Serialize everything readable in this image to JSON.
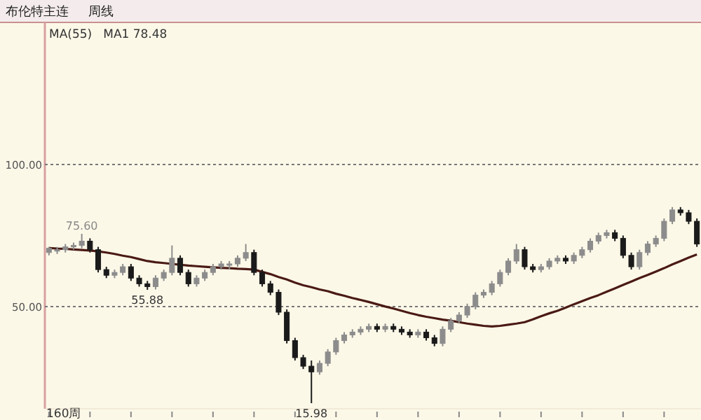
{
  "chart_data": {
    "type": "candlestick",
    "title": "布伦特主连",
    "annotations": [
      "周线",
      "MA(55)",
      "MA1 78.48",
      "160周",
      {
        "text": "75.60",
        "y": 75.6
      },
      {
        "text": "55.88",
        "y": 55.88
      },
      {
        "text": "15.98",
        "y": 15.98
      }
    ],
    "categories": [
      null,
      null,
      null,
      null,
      null,
      null,
      null,
      null,
      null,
      null,
      null,
      null,
      null,
      null,
      null,
      null,
      null,
      null,
      null,
      null,
      null,
      null,
      null,
      null,
      null,
      null,
      null,
      null,
      null,
      null,
      null,
      null,
      null,
      null,
      null,
      null,
      null,
      null,
      null,
      null,
      null,
      null,
      null,
      null,
      null,
      null,
      null,
      null,
      null,
      null,
      null,
      null,
      null,
      null,
      null,
      null,
      null,
      null,
      null,
      null,
      null,
      null,
      null,
      null,
      null,
      null,
      null,
      null,
      null,
      null,
      null,
      null,
      null,
      null,
      null,
      null,
      null,
      null,
      null,
      null
    ],
    "ylim": [
      14,
      150
    ],
    "yticks": [
      {
        "value": 50,
        "label": "50.00"
      },
      {
        "value": 100,
        "label": "100.00"
      }
    ],
    "grid": "y",
    "series": [
      {
        "type": "candlestick",
        "colors": [
          "#8c8c8c",
          "#8c8c8c",
          "#8c8c8c",
          "#8c8c8c",
          "#8c8c8c",
          "#1a1a1a",
          "#1a1a1a",
          "#1a1a1a",
          "#8c8c8c",
          "#8c8c8c",
          "#1a1a1a",
          "#1a1a1a",
          "#1a1a1a",
          "#8c8c8c",
          "#8c8c8c",
          "#8c8c8c",
          "#1a1a1a",
          "#1a1a1a",
          "#8c8c8c",
          "#8c8c8c",
          "#8c8c8c",
          "#8c8c8c",
          "#8c8c8c",
          "#8c8c8c",
          "#8c8c8c",
          "#1a1a1a",
          "#1a1a1a",
          "#1a1a1a",
          "#1a1a1a",
          "#1a1a1a",
          "#1a1a1a",
          "#1a1a1a",
          "#1a1a1a",
          "#8c8c8c",
          "#8c8c8c",
          "#8c8c8c",
          "#8c8c8c",
          "#8c8c8c",
          "#8c8c8c",
          "#8c8c8c",
          "#1a1a1a",
          "#8c8c8c",
          "#1a1a1a",
          "#1a1a1a",
          "#1a1a1a",
          "#8c8c8c",
          "#1a1a1a",
          "#1a1a1a",
          "#8c8c8c",
          "#8c8c8c",
          "#8c8c8c",
          "#8c8c8c",
          "#8c8c8c",
          "#8c8c8c",
          "#8c8c8c",
          "#8c8c8c",
          "#8c8c8c",
          "#8c8c8c",
          "#1a1a1a",
          "#1a1a1a",
          "#8c8c8c",
          "#8c8c8c",
          "#8c8c8c",
          "#1a1a1a",
          "#8c8c8c",
          "#8c8c8c",
          "#8c8c8c",
          "#8c8c8c",
          "#8c8c8c",
          "#1a1a1a",
          "#1a1a1a",
          "#1a1a1a",
          "#8c8c8c",
          "#8c8c8c",
          "#8c8c8c",
          "#8c8c8c",
          "#8c8c8c",
          "#1a1a1a",
          "#1a1a1a",
          "#1a1a1a"
        ],
        "ohlc": [
          [
            69,
            71,
            68,
            70.5
          ],
          [
            69.5,
            71,
            68.5,
            70
          ],
          [
            70,
            72,
            69,
            71
          ],
          [
            71,
            72.5,
            70,
            71.5
          ],
          [
            71.5,
            75.6,
            70.5,
            73
          ],
          [
            73,
            74,
            69,
            70
          ],
          [
            70,
            71,
            62,
            63
          ],
          [
            63,
            64,
            60,
            61
          ],
          [
            61,
            63,
            60,
            62
          ],
          [
            62,
            65,
            61,
            64
          ],
          [
            64,
            65,
            59,
            60
          ],
          [
            60,
            61,
            57,
            58
          ],
          [
            58,
            59,
            55.88,
            57
          ],
          [
            57,
            61,
            56,
            60
          ],
          [
            60,
            63,
            59,
            62
          ],
          [
            62,
            71.5,
            61,
            67
          ],
          [
            67,
            68,
            61,
            62
          ],
          [
            62,
            63,
            57,
            58
          ],
          [
            58,
            61,
            57,
            60
          ],
          [
            60,
            63,
            59,
            62
          ],
          [
            62,
            65,
            61,
            64
          ],
          [
            64,
            66,
            63,
            65
          ],
          [
            65,
            66,
            63,
            65
          ],
          [
            65,
            68,
            64,
            67
          ],
          [
            67,
            72,
            66,
            69
          ],
          [
            69,
            70,
            61,
            62
          ],
          [
            62,
            63,
            57,
            58
          ],
          [
            58,
            59,
            54,
            55
          ],
          [
            55,
            56,
            47,
            48
          ],
          [
            48,
            49,
            37,
            38
          ],
          [
            38,
            39,
            31,
            32
          ],
          [
            32,
            33,
            28,
            29
          ],
          [
            29,
            31,
            15.98,
            27
          ],
          [
            27,
            31,
            26,
            30
          ],
          [
            30,
            35,
            29,
            34
          ],
          [
            34,
            39,
            33,
            38
          ],
          [
            38,
            41,
            37,
            40
          ],
          [
            40,
            42,
            39,
            41
          ],
          [
            41,
            43,
            40,
            42
          ],
          [
            42,
            44,
            41,
            43
          ],
          [
            43,
            44,
            41,
            42
          ],
          [
            42,
            44,
            41,
            43
          ],
          [
            43,
            44,
            41,
            42
          ],
          [
            42,
            43,
            40,
            41
          ],
          [
            41,
            42,
            39,
            40
          ],
          [
            40,
            42,
            39,
            41
          ],
          [
            41,
            42,
            38,
            39
          ],
          [
            39,
            40,
            36,
            37
          ],
          [
            37,
            43,
            36,
            42
          ],
          [
            42,
            46,
            41,
            45
          ],
          [
            45,
            48,
            44,
            47
          ],
          [
            47,
            51,
            46,
            50
          ],
          [
            50,
            55,
            49,
            54
          ],
          [
            54,
            56,
            53,
            55
          ],
          [
            55,
            59,
            54,
            58
          ],
          [
            58,
            63,
            57,
            62
          ],
          [
            62,
            67,
            61,
            66
          ],
          [
            66,
            72,
            65,
            70
          ],
          [
            70,
            71,
            63,
            64
          ],
          [
            64,
            65,
            62,
            63
          ],
          [
            63,
            65,
            62,
            64
          ],
          [
            64,
            67,
            63,
            66
          ],
          [
            66,
            68,
            65,
            67
          ],
          [
            67,
            68,
            65,
            66
          ],
          [
            66,
            69,
            65,
            68
          ],
          [
            68,
            71,
            67,
            70
          ],
          [
            70,
            74,
            69,
            73
          ],
          [
            73,
            76,
            72,
            75
          ],
          [
            75,
            77,
            74,
            76
          ],
          [
            76,
            77,
            73,
            74
          ],
          [
            74,
            75,
            67,
            68
          ],
          [
            68,
            69,
            63,
            64
          ],
          [
            64,
            70,
            63,
            69
          ],
          [
            69,
            73,
            68,
            72
          ],
          [
            72,
            75,
            71,
            74
          ],
          [
            74,
            81,
            73,
            80
          ],
          [
            80,
            85,
            79,
            84
          ],
          [
            84,
            85,
            82,
            83
          ],
          [
            83,
            84,
            79,
            80
          ],
          [
            80,
            81,
            71,
            72
          ]
        ]
      },
      {
        "type": "line",
        "color": "#4a1a14",
        "values": [
          70.6,
          70.4,
          70.3,
          70.1,
          69.9,
          69.7,
          69.4,
          69,
          68.5,
          67.9,
          67.4,
          66.7,
          66,
          65.6,
          65.3,
          65,
          64.7,
          64.4,
          64.2,
          64,
          63.8,
          63.6,
          63.5,
          63.3,
          63.2,
          63,
          62.2,
          61.4,
          60.4,
          59.5,
          58.4,
          57.5,
          56.8,
          56,
          55.4,
          54.5,
          53.8,
          53,
          52.3,
          51.6,
          50.8,
          50,
          49.3,
          48.5,
          47.7,
          47,
          46.4,
          45.9,
          45.4,
          45,
          44.5,
          44,
          43.6,
          43.2,
          43,
          43.2,
          43.6,
          44,
          44.5,
          45.5,
          46.6,
          47.6,
          48.5,
          49.6,
          50.8,
          51.9,
          53,
          54,
          55.2,
          56.4,
          57.6,
          58.8,
          60,
          61.1,
          62.3,
          63.5,
          64.8,
          66,
          67.2,
          68.3
        ]
      }
    ]
  }
}
